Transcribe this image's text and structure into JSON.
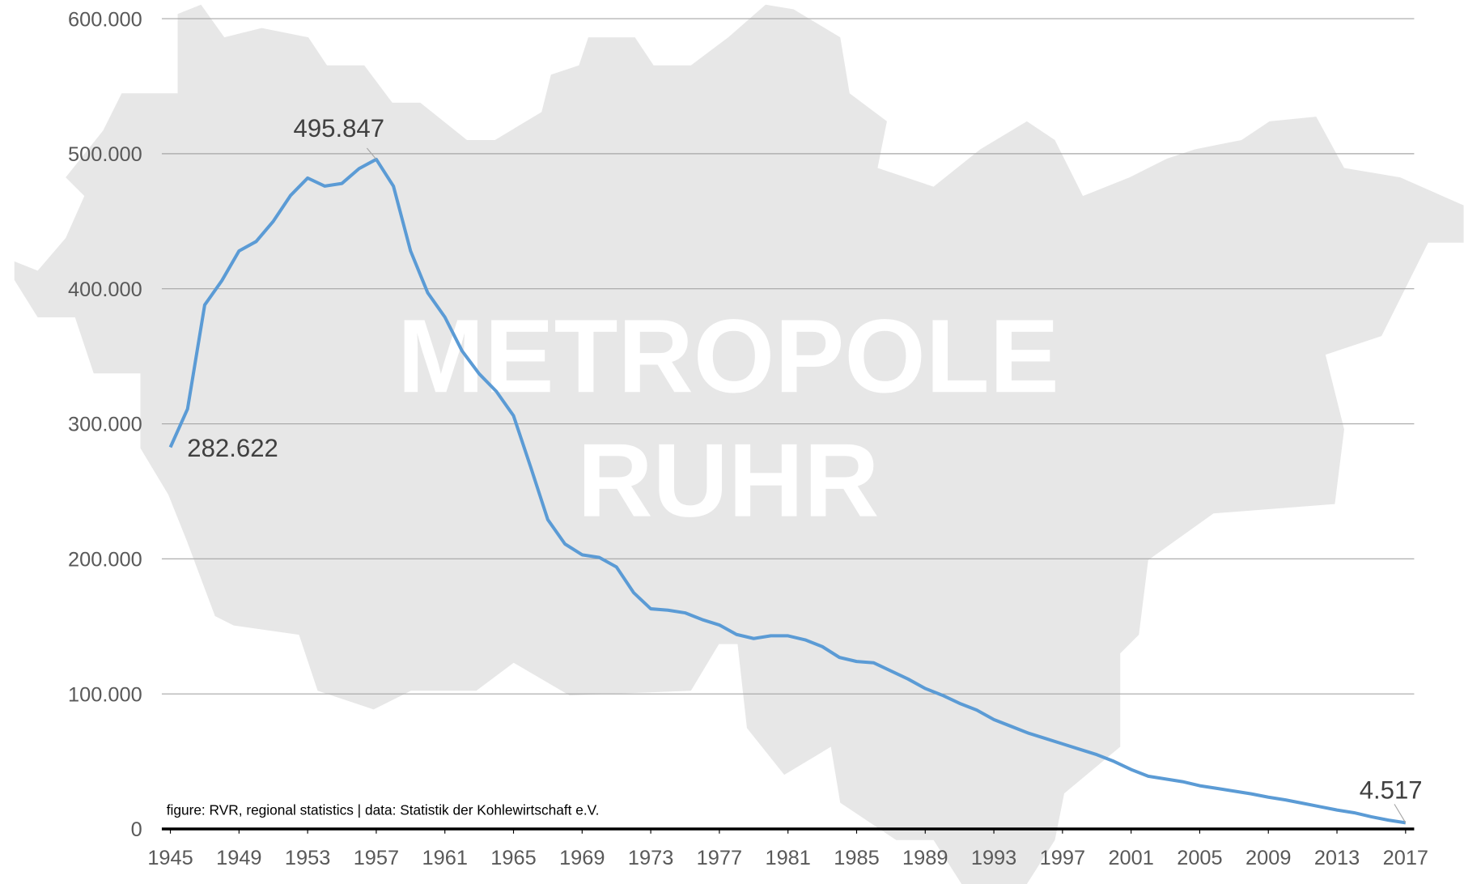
{
  "chart_data": {
    "type": "line",
    "watermark": [
      "METROPOLE",
      "RUHR"
    ],
    "source": "figure: RVR, regional statistics | data: Statistik der Kohlewirtschaft e.V.",
    "x": [
      1945,
      1946,
      1947,
      1948,
      1949,
      1950,
      1951,
      1952,
      1953,
      1954,
      1955,
      1956,
      1957,
      1958,
      1959,
      1960,
      1961,
      1962,
      1963,
      1964,
      1965,
      1966,
      1967,
      1968,
      1969,
      1970,
      1971,
      1972,
      1973,
      1974,
      1975,
      1976,
      1977,
      1978,
      1979,
      1980,
      1981,
      1982,
      1983,
      1984,
      1985,
      1986,
      1987,
      1988,
      1989,
      1990,
      1991,
      1992,
      1993,
      1994,
      1995,
      1996,
      1997,
      1998,
      1999,
      2000,
      2001,
      2002,
      2003,
      2004,
      2005,
      2006,
      2007,
      2008,
      2009,
      2010,
      2011,
      2012,
      2013,
      2014,
      2015,
      2016,
      2017
    ],
    "series": [
      {
        "color": "#5b9bd5",
        "values": [
          282622,
          311000,
          388000,
          406000,
          428000,
          435000,
          450000,
          469000,
          482000,
          476000,
          478000,
          489000,
          495847,
          476000,
          428000,
          397000,
          379000,
          354000,
          337000,
          324000,
          306000,
          268000,
          229000,
          211000,
          203000,
          201000,
          194000,
          175000,
          163000,
          162000,
          160000,
          155000,
          151000,
          144000,
          141000,
          143000,
          143000,
          140000,
          135000,
          127000,
          124000,
          123000,
          117000,
          111000,
          104000,
          99000,
          93000,
          88000,
          81000,
          76000,
          71000,
          67000,
          63000,
          59000,
          55000,
          50000,
          44000,
          39000,
          37000,
          35000,
          32000,
          30000,
          28000,
          26000,
          23500,
          21500,
          19000,
          16500,
          14000,
          12000,
          9000,
          6500,
          4517
        ],
        "value_labels": [
          "282.622",
          null,
          null,
          null,
          null,
          null,
          null,
          null,
          null,
          null,
          null,
          null,
          "495.847",
          null,
          null,
          null,
          null,
          null,
          null,
          null,
          null,
          null,
          null,
          null,
          null,
          null,
          null,
          null,
          null,
          null,
          null,
          null,
          null,
          null,
          null,
          null,
          null,
          null,
          null,
          null,
          null,
          null,
          null,
          null,
          null,
          null,
          null,
          null,
          null,
          null,
          null,
          null,
          null,
          null,
          null,
          null,
          null,
          null,
          null,
          null,
          null,
          null,
          null,
          null,
          null,
          null,
          null,
          null,
          null,
          null,
          null,
          null,
          "4.517"
        ]
      }
    ],
    "xlim": [
      1944.5,
      2017.5
    ],
    "xticks": [
      1945,
      1949,
      1953,
      1957,
      1961,
      1965,
      1969,
      1973,
      1977,
      1981,
      1985,
      1989,
      1993,
      1997,
      2001,
      2005,
      2009,
      2013,
      2017
    ],
    "ylim": [
      0,
      600000
    ],
    "yticks": [
      0,
      {
        "value": 100000,
        "label": "100.000"
      },
      {
        "value": 200000,
        "label": "200.000"
      },
      {
        "value": 300000,
        "label": "300.000"
      },
      {
        "value": 400000,
        "label": "400.000"
      },
      {
        "value": 500000,
        "label": "500.000"
      },
      {
        "value": 600000,
        "label": "600.000"
      }
    ],
    "grid": true
  }
}
